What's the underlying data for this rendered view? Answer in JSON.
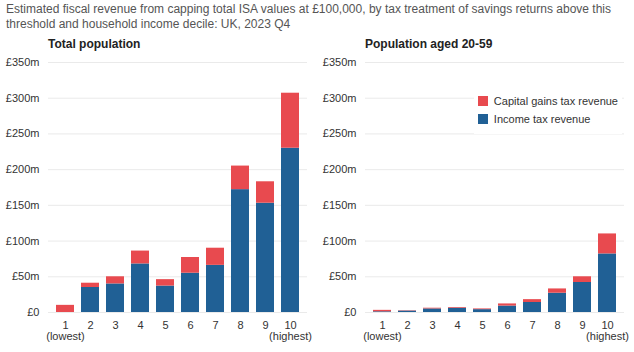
{
  "title": "Estimated fiscal revenue from capping total ISA values at £100,000, by tax treatment of savings returns above this threshold and household income decile: UK, 2023 Q4",
  "chart_data": [
    {
      "type": "bar",
      "title": "Total population",
      "stacked": true,
      "grid": true,
      "categories": [
        "1\n(lowest)",
        "2",
        "3",
        "4",
        "5",
        "6",
        "7",
        "8",
        "9",
        "10\n(highest)"
      ],
      "series": [
        {
          "name": "Income tax revenue",
          "color": "#206095",
          "values": [
            0,
            35,
            40,
            68,
            37,
            55,
            66,
            172,
            153,
            230
          ]
        },
        {
          "name": "Capital gains tax revenue",
          "color": "#e84a4f",
          "values": [
            10,
            6,
            10,
            18,
            9,
            22,
            24,
            33,
            30,
            77
          ]
        }
      ],
      "ylim": [
        0,
        350
      ],
      "yticks": [
        {
          "value": 0,
          "label": "£0"
        },
        {
          "value": 50,
          "label": "£50m"
        },
        {
          "value": 100,
          "label": "£100m"
        },
        {
          "value": 150,
          "label": "£150m"
        },
        {
          "value": 200,
          "label": "£200m"
        },
        {
          "value": 250,
          "label": "£250m"
        },
        {
          "value": 300,
          "label": "£300m"
        },
        {
          "value": 350,
          "label": "£350m"
        }
      ]
    },
    {
      "type": "bar",
      "title": "Population aged 20-59",
      "stacked": true,
      "grid": true,
      "legend": "top-right",
      "categories": [
        "1\n(lowest)",
        "2",
        "3",
        "4",
        "5",
        "6",
        "7",
        "8",
        "9",
        "10\n(highest)"
      ],
      "series": [
        {
          "name": "Income tax revenue",
          "color": "#206095",
          "values": [
            1,
            2,
            5,
            6,
            4,
            9,
            14,
            27,
            42,
            82
          ]
        },
        {
          "name": "Capital gains tax revenue",
          "color": "#e84a4f",
          "values": [
            2,
            0.5,
            1,
            1,
            1,
            3,
            4,
            6,
            8,
            28
          ]
        }
      ],
      "ylim": [
        0,
        350
      ],
      "yticks": [
        {
          "value": 0,
          "label": "£0"
        },
        {
          "value": 50,
          "label": "£50m"
        },
        {
          "value": 100,
          "label": "£100m"
        },
        {
          "value": 150,
          "label": "£150m"
        },
        {
          "value": 200,
          "label": "£200m"
        },
        {
          "value": 250,
          "label": "£250m"
        },
        {
          "value": 300,
          "label": "£300m"
        },
        {
          "value": 350,
          "label": "£350m"
        }
      ]
    }
  ]
}
